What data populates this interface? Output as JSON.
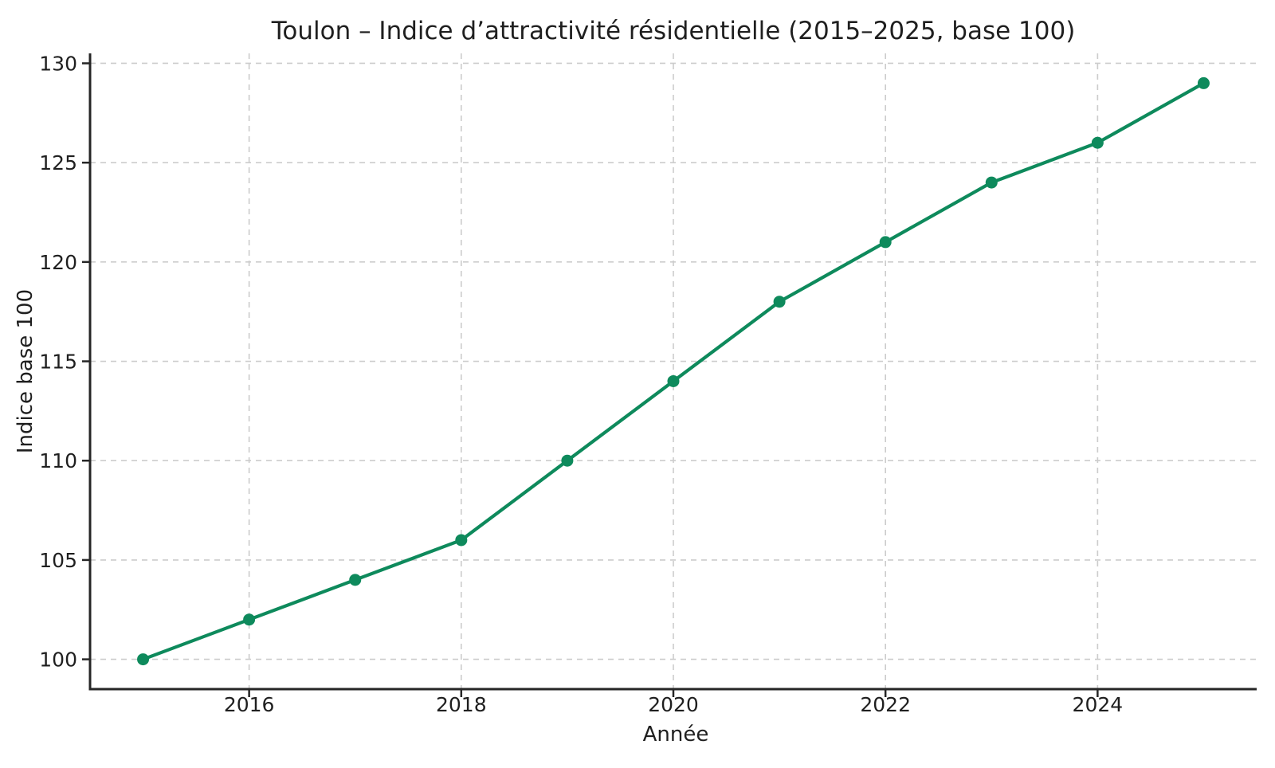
{
  "figure": {
    "background": "#ffffff",
    "text_color": "#1f1f1f"
  },
  "chart_data": {
    "type": "line",
    "title": "Toulon – Indice d’attractivité résidentielle (2015–2025, base 100)",
    "xlabel": "Année",
    "ylabel": "Indice base 100",
    "x": [
      2015,
      2016,
      2017,
      2018,
      2019,
      2020,
      2021,
      2022,
      2023,
      2024,
      2025
    ],
    "series": [
      {
        "name": "Indice d’attractivité résidentielle",
        "values": [
          100,
          102,
          104,
          106,
          110,
          114,
          118,
          121,
          124,
          126,
          129
        ],
        "color": "#0e8a5c",
        "marker": "circle"
      }
    ],
    "xlim": [
      2014.5,
      2025.5
    ],
    "ylim": [
      98.5,
      130.5
    ],
    "xticks": [
      2016,
      2018,
      2020,
      2022,
      2024
    ],
    "yticks": [
      100,
      105,
      110,
      115,
      120,
      125,
      130
    ],
    "grid": true,
    "grid_style": "dashed",
    "grid_color": "#cccccc",
    "spine_color": "#262626",
    "legend": false,
    "legend_position": "none",
    "background": "#ffffff"
  }
}
